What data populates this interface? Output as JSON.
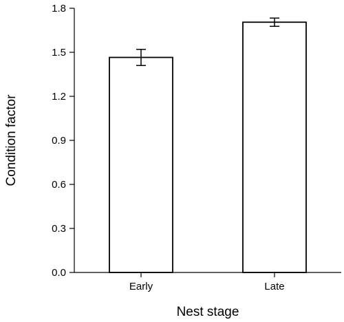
{
  "chart_data": {
    "type": "bar",
    "title": "",
    "xlabel": "Nest stage",
    "ylabel": "Condition factor",
    "categories": [
      "Early",
      "Late"
    ],
    "values": [
      1.465,
      1.705
    ],
    "error_bars": [
      0.055,
      0.028
    ],
    "ylim": [
      0,
      1.8
    ],
    "yticks": [
      0.0,
      0.3,
      0.6,
      0.9,
      1.2,
      1.5,
      1.8
    ],
    "ytick_labels": [
      "0.0",
      "0.3",
      "0.6",
      "0.9",
      "1.2",
      "1.5",
      "1.8"
    ],
    "grid": false,
    "legend": "none",
    "bar_fill": "#ffffff",
    "bar_stroke": "#000000"
  }
}
